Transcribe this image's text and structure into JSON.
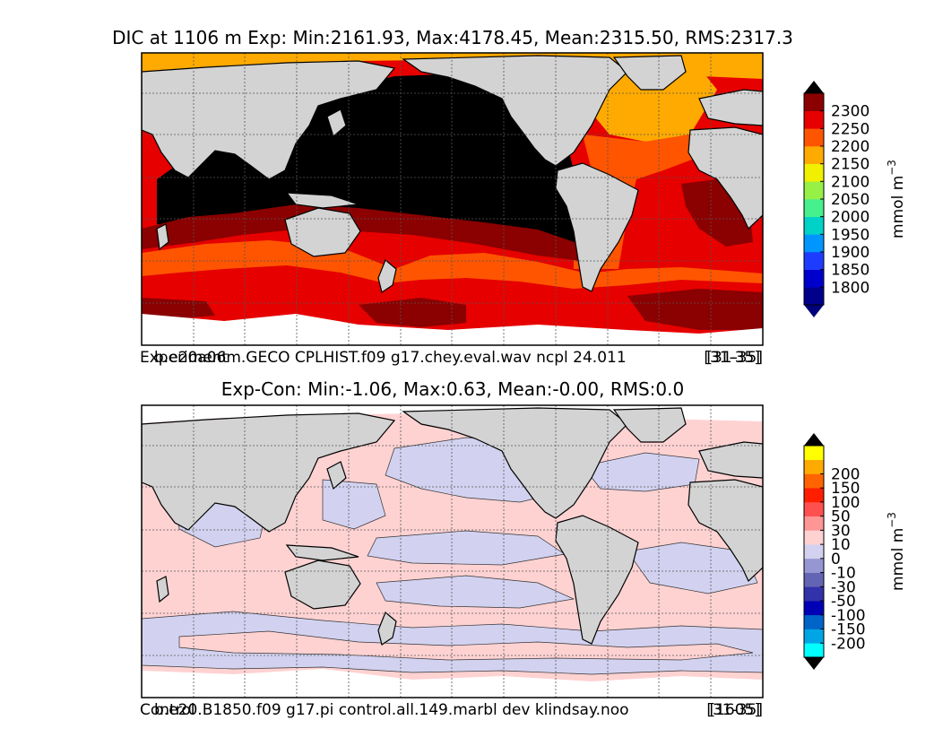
{
  "top_panel": {
    "title": "DIC at 1106 m Exp: Min:2161.93, Max:4178.45, Mean:2315.50, RMS:2317.3",
    "caption_left_a": "Experiment",
    "caption_left_b": "b.e20a06m.GECO CPLHIST.f09 g17.chey.eval.wav ncpl 24.011",
    "caption_right_a": "[31-35]",
    "caption_right_b": "[31-35]",
    "colorbar": {
      "unit": "mmol m",
      "unit_exp": "−3",
      "ticks": [
        "1800",
        "1850",
        "1900",
        "1950",
        "2000",
        "2050",
        "2100",
        "2150",
        "2200",
        "2250",
        "2300"
      ],
      "colors": [
        "#00008b",
        "#0000cd",
        "#1e3cff",
        "#0096ff",
        "#00d2c8",
        "#46f08c",
        "#96f046",
        "#f0f000",
        "#ffaa00",
        "#ff5500",
        "#e60000",
        "#8b0000"
      ],
      "under_color": "#00007a",
      "over_color": "#000000"
    }
  },
  "bottom_panel": {
    "title": "Exp-Con: Min:-1.06, Max:0.63, Mean:-0.00, RMS:0.0",
    "caption_left_a": "Control",
    "caption_left_b": "b.e20.B1850.f09 g17.pi control.all.149.marbl dev klindsay.noo",
    "caption_right_a": "[31-35]",
    "caption_right_b": "[1605]",
    "colorbar": {
      "unit": "mmol m",
      "unit_exp": "−3",
      "ticks": [
        "-200",
        "-150",
        "-100",
        "-50",
        "-30",
        "-10",
        "0",
        "10",
        "30",
        "50",
        "100",
        "150",
        "200"
      ],
      "colors": [
        "#00ffff",
        "#00a5e6",
        "#0064c8",
        "#0000b4",
        "#3232aa",
        "#6464b4",
        "#9696d2",
        "#d2d2f0",
        "#ffd2d2",
        "#ff9696",
        "#ff5050",
        "#ff1e00",
        "#ff6400",
        "#ffaa00",
        "#ffff00"
      ],
      "under_color": "#000000",
      "over_color": "#000000"
    }
  },
  "map_colors": {
    "land": "#d3d3d3",
    "missing": "#ffffff",
    "coast": "#000000",
    "grid": "#555555"
  }
}
